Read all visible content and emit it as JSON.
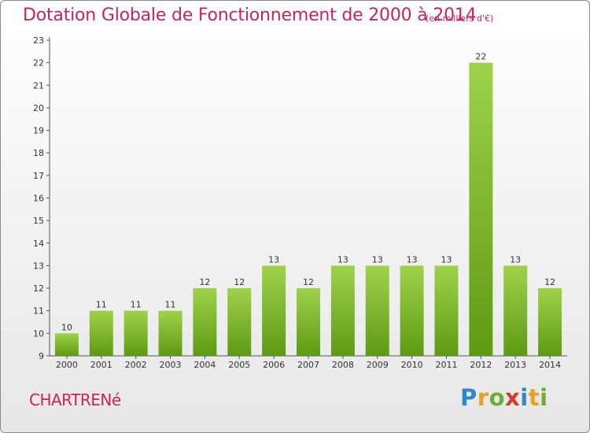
{
  "header": {
    "title": "Dotation Globale de Fonctionnement de 2000 à 2014",
    "unit": "(en milliers d'€)"
  },
  "footer": {
    "commune": "CHARTRENé",
    "logo_letters": [
      "P",
      "r",
      "o",
      "x",
      "i",
      "t",
      "i"
    ],
    "logo_colors": [
      "#2f86c8",
      "#e8a020",
      "#6cae2e",
      "#d63a2a",
      "#2f86c8",
      "#e8a020",
      "#6cae2e"
    ]
  },
  "colors": {
    "accent": "#c8245a",
    "bar_top": "#9fd24a",
    "bar_bottom": "#5e9a14",
    "axis": "#555555",
    "text": "#333333"
  },
  "chart_data": {
    "type": "bar",
    "title": "Dotation Globale de Fonctionnement de 2000 à 2014",
    "subtitle": "(en milliers d'€)",
    "xlabel": "",
    "ylabel": "",
    "categories": [
      "2000",
      "2001",
      "2002",
      "2003",
      "2004",
      "2005",
      "2006",
      "2007",
      "2008",
      "2009",
      "2010",
      "2011",
      "2012",
      "2013",
      "2014"
    ],
    "values": [
      10,
      11,
      11,
      11,
      12,
      12,
      13,
      12,
      13,
      13,
      13,
      13,
      22,
      13,
      12
    ],
    "ylim": [
      9,
      23
    ],
    "yticks": [
      9,
      10,
      11,
      12,
      13,
      14,
      15,
      16,
      17,
      18,
      19,
      20,
      21,
      22,
      23
    ],
    "grid": false,
    "legend": "none"
  }
}
